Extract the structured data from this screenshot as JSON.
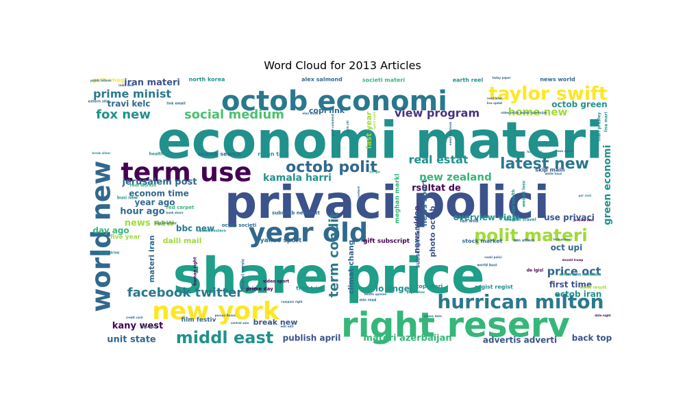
{
  "chart_data": {
    "type": "wordcloud",
    "title": "Word Cloud for 2013 Articles",
    "colormap": "viridis",
    "background": "#ffffff",
    "words": [
      {
        "text": "economi materi",
        "weight": 100,
        "color": "#21918c"
      },
      {
        "text": "share price",
        "weight": 98,
        "color": "#1f9e89"
      },
      {
        "text": "privaci polici",
        "weight": 92,
        "color": "#3b528b"
      },
      {
        "text": "right reserv",
        "weight": 70,
        "color": "#35b779"
      },
      {
        "text": "octob economi",
        "weight": 52,
        "color": "#2a788e"
      },
      {
        "text": "new york",
        "weight": 48,
        "color": "#fde725"
      },
      {
        "text": "year old",
        "weight": 45,
        "color": "#31688e"
      },
      {
        "text": "term use",
        "weight": 44,
        "color": "#440154"
      },
      {
        "text": "world new",
        "weight": 42,
        "color": "#31688e"
      },
      {
        "text": "hurrican milton",
        "weight": 34,
        "color": "#2a788e"
      },
      {
        "text": "taylor swift",
        "weight": 32,
        "color": "#fde725"
      },
      {
        "text": "polit materi",
        "weight": 30,
        "color": "#a0da39"
      },
      {
        "text": "middl east",
        "weight": 26,
        "color": "#21918c"
      },
      {
        "text": "octob polit",
        "weight": 24,
        "color": "#31688e"
      },
      {
        "text": "latest new",
        "weight": 24,
        "color": "#2a788e"
      },
      {
        "text": "social medium",
        "weight": 20,
        "color": "#4ac16d"
      },
      {
        "text": "term condit",
        "weight": 20,
        "color": "#2a788e"
      },
      {
        "text": "facebook twitter",
        "weight": 19,
        "color": "#2a788e"
      },
      {
        "text": "fox new",
        "weight": 18,
        "color": "#21918c"
      },
      {
        "text": "prime minist",
        "weight": 18,
        "color": "#2a788e"
      },
      {
        "text": "real estat",
        "weight": 17,
        "color": "#21918c"
      },
      {
        "text": "price oct",
        "weight": 17,
        "color": "#31688e"
      },
      {
        "text": "green economi",
        "weight": 16,
        "color": "#21918c"
      },
      {
        "text": "view program",
        "weight": 16,
        "color": "#46327e"
      },
      {
        "text": "home new",
        "weight": 15,
        "color": "#a0da39"
      },
      {
        "text": "new zealand",
        "weight": 15,
        "color": "#35b779"
      },
      {
        "text": "kamala harri",
        "weight": 14,
        "color": "#21918c"
      },
      {
        "text": "iran materi",
        "weight": 13,
        "color": "#3b528b"
      },
      {
        "text": "news new",
        "weight": 13,
        "color": "#a0da39"
      },
      {
        "text": "jerusalem post",
        "weight": 13,
        "color": "#31688e"
      },
      {
        "text": "rsultat de",
        "weight": 13,
        "color": "#440154"
      },
      {
        "text": "hour ago",
        "weight": 13,
        "color": "#31688e"
      },
      {
        "text": "materi azerbaijan",
        "weight": 13,
        "color": "#35b779"
      },
      {
        "text": "publish april",
        "weight": 13,
        "color": "#3b528b"
      },
      {
        "text": "advertis adverti",
        "weight": 13,
        "color": "#3b528b"
      },
      {
        "text": "back top",
        "weight": 13,
        "color": "#3b528b"
      },
      {
        "text": "unit state",
        "weight": 13,
        "color": "#31688e"
      },
      {
        "text": "kany west",
        "weight": 13,
        "color": "#440154"
      },
      {
        "text": "econom time",
        "weight": 12,
        "color": "#31688e"
      },
      {
        "text": "year ago",
        "weight": 12,
        "color": "#31688e"
      },
      {
        "text": "travi kelc",
        "weight": 12,
        "color": "#31688e"
      },
      {
        "text": "day ago",
        "weight": 12,
        "color": "#35b779"
      },
      {
        "text": "use privaci",
        "weight": 12,
        "color": "#3b528b"
      },
      {
        "text": "octob green",
        "weight": 12,
        "color": "#21918c"
      },
      {
        "text": "overview view",
        "weight": 12,
        "color": "#21918c"
      },
      {
        "text": "first time",
        "weight": 12,
        "color": "#3b528b"
      },
      {
        "text": "octob iran",
        "weight": 12,
        "color": "#21918c"
      },
      {
        "text": "oct upi",
        "weight": 12,
        "color": "#31688e"
      },
      {
        "text": "lo angel",
        "weight": 12,
        "color": "#21918c"
      },
      {
        "text": "break new",
        "weight": 12,
        "color": "#3b528b"
      },
      {
        "text": "bbc new",
        "weight": 12,
        "color": "#2a788e"
      },
      {
        "text": "daili mail",
        "weight": 12,
        "color": "#a0da39"
      },
      {
        "text": "climat chang",
        "weight": 12,
        "color": "#31688e"
      },
      {
        "text": "news sport",
        "weight": 12,
        "color": "#31688e"
      },
      {
        "text": "news video",
        "weight": 11,
        "color": "#46327e"
      },
      {
        "text": "photo octob",
        "weight": 11,
        "color": "#3b528b"
      },
      {
        "text": "copi link",
        "weight": 11,
        "color": "#31688e"
      },
      {
        "text": "materi iran",
        "weight": 11,
        "color": "#31688e"
      },
      {
        "text": "last year",
        "weight": 11,
        "color": "#a0da39"
      },
      {
        "text": "meghan markl",
        "weight": 9,
        "color": "#35b779"
      },
      {
        "text": "five year",
        "weight": 9,
        "color": "#a0da39"
      },
      {
        "text": "yahoo sport",
        "weight": 9,
        "color": "#31688e"
      },
      {
        "text": "gift subscript",
        "weight": 9,
        "color": "#440154"
      },
      {
        "text": "film festiv",
        "weight": 9,
        "color": "#31688e"
      },
      {
        "text": "free trial",
        "weight": 8,
        "color": "#21918c"
      },
      {
        "text": "subscript subscrib",
        "weight": 8,
        "color": "#31688e"
      },
      {
        "text": "stock market",
        "weight": 8,
        "color": "#31688e"
      },
      {
        "text": "regist regist",
        "weight": 8,
        "color": "#21918c"
      },
      {
        "text": "top stori",
        "weight": 8,
        "color": "#21918c"
      },
      {
        "text": "search search",
        "weight": 8,
        "color": "#31688e"
      },
      {
        "text": "ratan tata",
        "weight": 8,
        "color": "#21918c"
      },
      {
        "text": "north korea",
        "weight": 8,
        "color": "#21918c"
      },
      {
        "text": "getti imag",
        "weight": 8,
        "color": "#fde725"
      },
      {
        "text": "alex salmond",
        "weight": 8,
        "color": "#31688e"
      },
      {
        "text": "earth reel",
        "weight": 8,
        "color": "#21918c"
      },
      {
        "text": "societi materi",
        "weight": 8,
        "color": "#35b779"
      },
      {
        "text": "news world",
        "weight": 8,
        "color": "#31688e"
      },
      {
        "text": "skip main",
        "weight": 8,
        "color": "#3b528b"
      },
      {
        "text": "red carpet",
        "weight": 7,
        "color": "#35b779"
      },
      {
        "text": "octob societi",
        "weight": 7,
        "color": "#31688e"
      },
      {
        "text": "subscrib newslett",
        "weight": 7,
        "color": "#31688e"
      },
      {
        "text": "prime day",
        "weight": 7,
        "color": "#440154"
      },
      {
        "text": "busi new",
        "weight": 6,
        "color": "#21918c"
      },
      {
        "text": "reel worklif",
        "weight": 6,
        "color": "#35b779"
      },
      {
        "text": "health scienc",
        "weight": 6,
        "color": "#21918c"
      },
      {
        "text": "human right",
        "weight": 6,
        "color": "#440154"
      },
      {
        "text": "financi servic",
        "weight": 6,
        "color": "#31688e"
      },
      {
        "text": "video sport",
        "weight": 6,
        "color": "#440154"
      },
      {
        "text": "worklif travel",
        "weight": 6,
        "color": "#21918c"
      },
      {
        "text": "fan wild",
        "weight": 6,
        "color": "#31688e"
      },
      {
        "text": "de lgisl",
        "weight": 6,
        "color": "#440154"
      },
      {
        "text": "elect result",
        "weight": 6,
        "color": "#a0da39"
      },
      {
        "text": "entertain medium",
        "weight": 6,
        "color": "#21918c"
      },
      {
        "text": "mental health",
        "weight": 6,
        "color": "#21918c"
      },
      {
        "text": "weight loss",
        "weight": 6,
        "color": "#21918c"
      },
      {
        "text": "mari presley",
        "weight": 6,
        "color": "#21918c"
      },
      {
        "text": "lisa mari",
        "weight": 6,
        "color": "#21918c"
      },
      {
        "text": "min read",
        "weight": 5,
        "color": "#31688e"
      },
      {
        "text": "oil ga",
        "weight": 5,
        "color": "#35b779"
      },
      {
        "text": "world busi",
        "weight": 5,
        "color": "#31688e"
      },
      {
        "text": "ben affleck",
        "weight": 5,
        "color": "#31688e"
      },
      {
        "text": "food drink",
        "weight": 5,
        "color": "#21918c"
      },
      {
        "text": "big brother",
        "weight": 5,
        "color": "#31688e"
      },
      {
        "text": "content extern",
        "weight": 5,
        "color": "#21918c"
      },
      {
        "text": "extern site",
        "weight": 5,
        "color": "#31688e"
      },
      {
        "text": "link email",
        "weight": 5,
        "color": "#31688e"
      },
      {
        "text": "today paper",
        "weight": 4,
        "color": "#31688e"
      },
      {
        "text": "donald trump",
        "weight": 4,
        "color": "#440154"
      },
      {
        "text": "post comment",
        "weight": 4,
        "color": "#31688e"
      },
      {
        "text": "york citi",
        "weight": 4,
        "color": "#31688e"
      },
      {
        "text": "sport court",
        "weight": 4,
        "color": "#a0da39"
      },
      {
        "text": "health opinion",
        "weight": 4,
        "color": "#31688e"
      },
      {
        "text": "video octob materi azerbaijan",
        "weight": 4,
        "color": "#31688e"
      },
      {
        "text": "cooki polici",
        "weight": 4,
        "color": "#31688e"
      },
      {
        "text": "white hous",
        "weight": 4,
        "color": "#31688e"
      },
      {
        "text": "tech scienc",
        "weight": 4,
        "color": "#31688e"
      },
      {
        "text": "preview next",
        "weight": 4,
        "color": "#440154"
      },
      {
        "text": "news agenc",
        "weight": 4,
        "color": "#31688e"
      },
      {
        "text": "break silenc",
        "weight": 4,
        "color": "#21918c"
      },
      {
        "text": "elon musk",
        "weight": 4,
        "color": "#31688e"
      },
      {
        "text": "person financ",
        "weight": 4,
        "color": "#31688e"
      },
      {
        "text": "compani right",
        "weight": 4,
        "color": "#31688e"
      },
      {
        "text": "page follow",
        "weight": 4,
        "color": "#21918c"
      },
      {
        "text": "india new",
        "weight": 4,
        "color": "#31688e"
      },
      {
        "text": "public inform",
        "weight": 4,
        "color": "#31688e"
      },
      {
        "text": "two year",
        "weight": 4,
        "color": "#35b779"
      },
      {
        "text": "central asia",
        "weight": 4,
        "color": "#31688e"
      },
      {
        "text": "credit card",
        "weight": 4,
        "color": "#31688e"
      },
      {
        "text": "edit edit",
        "weight": 4,
        "color": "#31688e"
      },
      {
        "text": "date night",
        "weight": 4,
        "color": "#440154"
      },
      {
        "text": "per cent",
        "weight": 4,
        "color": "#21918c"
      },
      {
        "text": "scienc data",
        "weight": 4,
        "color": "#31688e"
      },
      {
        "text": "main content",
        "weight": 4,
        "color": "#31688e"
      },
      {
        "text": "bank share",
        "weight": 4,
        "color": "#31688e"
      },
      {
        "text": "read later",
        "weight": 4,
        "color": "#31688e"
      },
      {
        "text": "live updat",
        "weight": 4,
        "color": "#31688e"
      },
      {
        "text": "email facebook",
        "weight": 4,
        "color": "#31688e"
      },
      {
        "text": "hur nobel",
        "weight": 4,
        "color": "#21918c"
      }
    ]
  }
}
